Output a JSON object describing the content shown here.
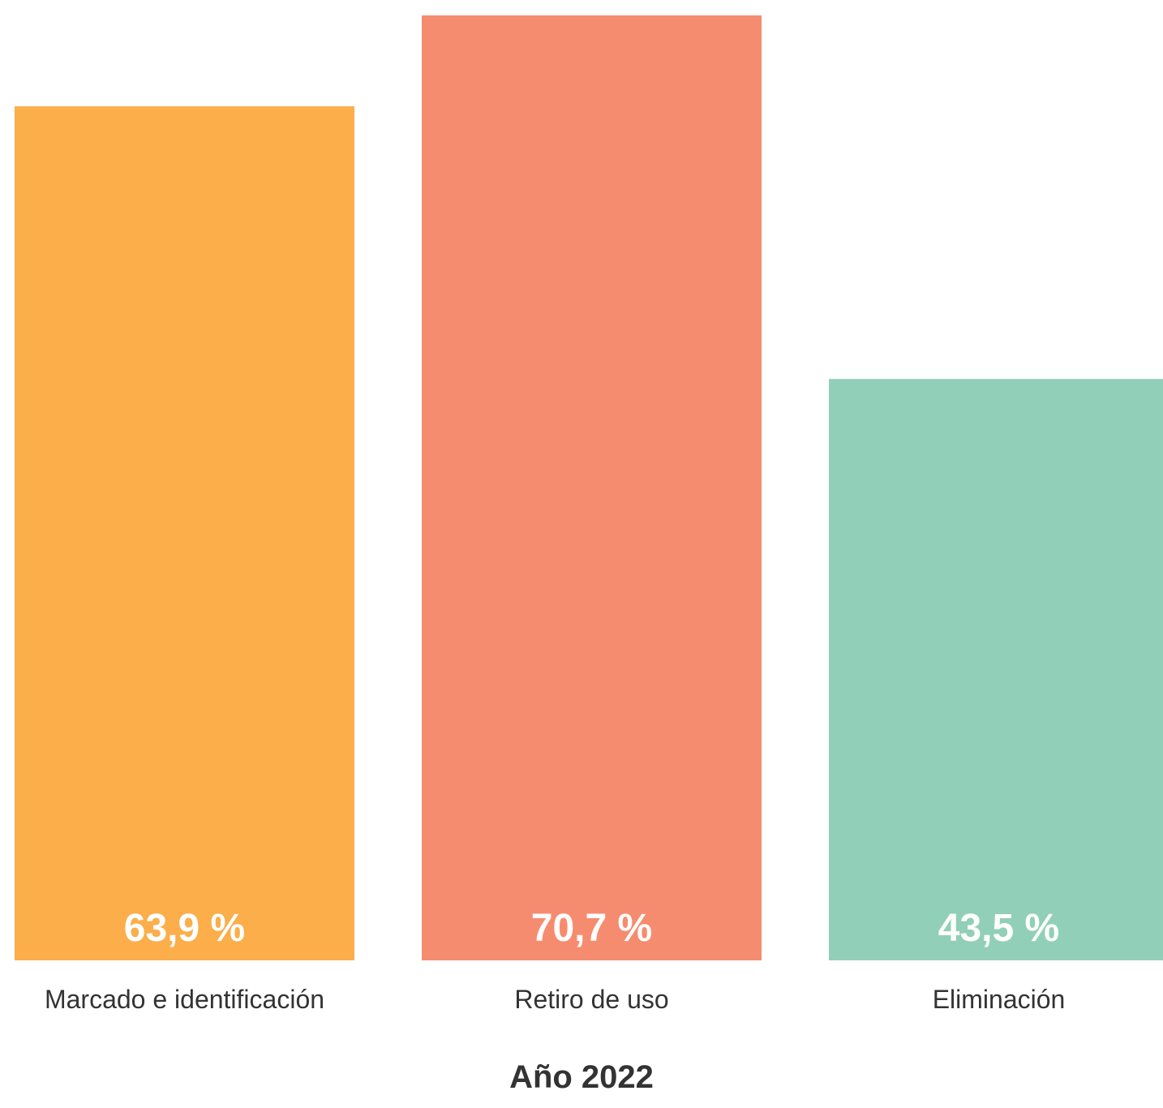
{
  "chart_data": {
    "type": "bar",
    "categories": [
      "Marcado e identificación",
      "Retiro de uso",
      "Eliminación"
    ],
    "values": [
      63.9,
      70.7,
      43.5
    ],
    "value_labels": [
      "63,9 %",
      "70,7 %",
      "43,5 %"
    ],
    "colors": [
      "#FBAE4A",
      "#F68C6F",
      "#91CFB9"
    ],
    "unit": "%",
    "xlabel": "Año 2022",
    "ylabel": "",
    "grid": false,
    "legend": "none"
  }
}
